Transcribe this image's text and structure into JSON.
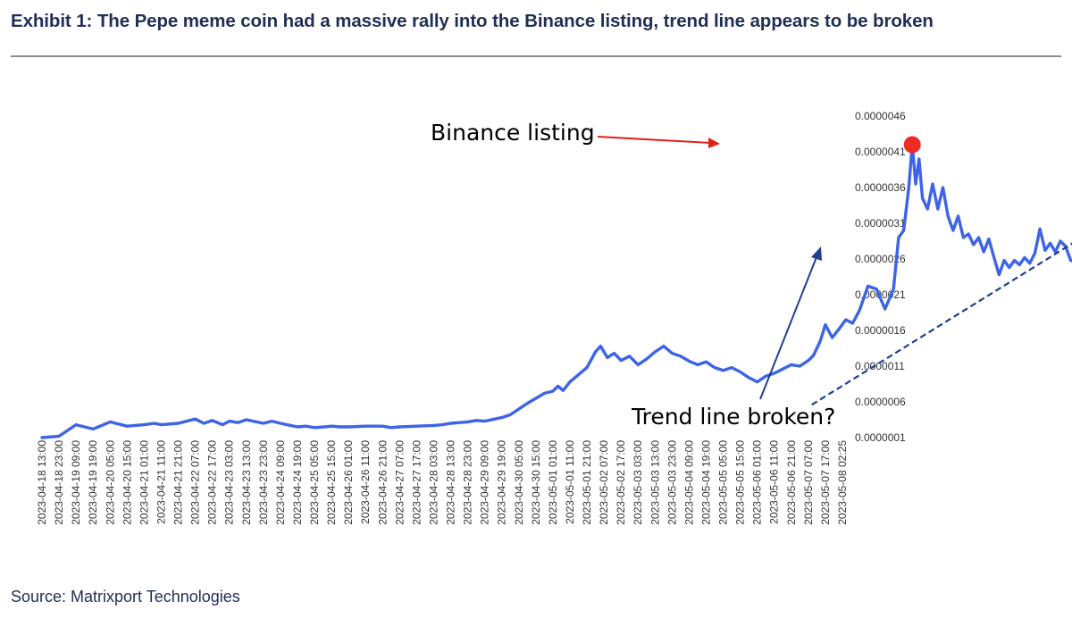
{
  "header": {
    "title": "Exhibit 1: The Pepe meme coin had a massive rally into the Binance listing, trend line appears to be broken"
  },
  "footer": {
    "source": "Source: Matrixport Technologies"
  },
  "colors": {
    "series": "#3d64e6",
    "marker": "#ee2b24",
    "arrow_red": "#e0201c",
    "trend": "#1f3f8f",
    "title": "#1f2f57"
  },
  "chart_data": {
    "type": "line",
    "title": "",
    "xlabel": "",
    "ylabel": "",
    "y_axis_position": "right",
    "grid": false,
    "ylim": [
      1e-07,
      4.6e-06
    ],
    "y_ticks": [
      "0.0000046",
      "0.0000041",
      "0.0000036",
      "0.0000031",
      "0.0000026",
      "0.0000021",
      "0.0000016",
      "0.0000011",
      "0.0000006",
      "0.0000001"
    ],
    "x_tick_labels": [
      "2023-04-18 13:00",
      "2023-04-18 23:00",
      "2023-04-19 09:00",
      "2023-04-19 19:00",
      "2023-04-20 05:00",
      "2023-04-20 15:00",
      "2023-04-21 01:00",
      "2023-04-21 11:00",
      "2023-04-21 21:00",
      "2023-04-22 07:00",
      "2023-04-22 17:00",
      "2023-04-23 03:00",
      "2023-04-23 13:00",
      "2023-04-23 23:00",
      "2023-04-24 09:00",
      "2023-04-24 19:00",
      "2023-04-25 05:00",
      "2023-04-25 15:00",
      "2023-04-26 01:00",
      "2023-04-26 11:00",
      "2023-04-26 21:00",
      "2023-04-27 07:00",
      "2023-04-27 17:00",
      "2023-04-28 03:00",
      "2023-04-28 13:00",
      "2023-04-28 23:00",
      "2023-04-29 09:00",
      "2023-04-29 19:00",
      "2023-04-30 05:00",
      "2023-04-30 15:00",
      "2023-05-01 01:00",
      "2023-05-01 11:00",
      "2023-05-01 21:00",
      "2023-05-02 07:00",
      "2023-05-02 17:00",
      "2023-05-03 03:00",
      "2023-05-03 13:00",
      "2023-05-03 23:00",
      "2023-05-04 09:00",
      "2023-05-04 19:00",
      "2023-05-05 05:00",
      "2023-05-05 15:00",
      "2023-05-06 01:00",
      "2023-05-06 11:00",
      "2023-05-06 21:00",
      "2023-05-07 07:00",
      "2023-05-07 17:00",
      "2023-05-08 02:25"
    ],
    "series": [
      {
        "name": "",
        "points": [
          [
            0,
            1e-07
          ],
          [
            1,
            1.2e-07
          ],
          [
            2,
            2.8e-07
          ],
          [
            3,
            2.2e-07
          ],
          [
            4,
            3.2e-07
          ],
          [
            5,
            2.6e-07
          ],
          [
            6,
            2.8e-07
          ],
          [
            6.6,
            3e-07
          ],
          [
            7,
            2.8e-07
          ],
          [
            8,
            3e-07
          ],
          [
            9,
            3.6e-07
          ],
          [
            9.5,
            3e-07
          ],
          [
            10,
            3.4e-07
          ],
          [
            10.6,
            2.8e-07
          ],
          [
            11,
            3.3e-07
          ],
          [
            11.5,
            3.1e-07
          ],
          [
            12,
            3.5e-07
          ],
          [
            12.6,
            3.2e-07
          ],
          [
            13,
            3e-07
          ],
          [
            13.5,
            3.3e-07
          ],
          [
            14,
            3e-07
          ],
          [
            14.6,
            2.7e-07
          ],
          [
            15,
            2.5e-07
          ],
          [
            15.5,
            2.6e-07
          ],
          [
            16,
            2.4e-07
          ],
          [
            16.6,
            2.5e-07
          ],
          [
            17,
            2.6e-07
          ],
          [
            17.5,
            2.5e-07
          ],
          [
            18,
            2.5e-07
          ],
          [
            19,
            2.6e-07
          ],
          [
            20,
            2.6e-07
          ],
          [
            20.5,
            2.4e-07
          ],
          [
            21,
            2.5e-07
          ],
          [
            22,
            2.6e-07
          ],
          [
            23,
            2.7e-07
          ],
          [
            23.5,
            2.8e-07
          ],
          [
            24,
            3e-07
          ],
          [
            25,
            3.2e-07
          ],
          [
            25.5,
            3.4e-07
          ],
          [
            26,
            3.3e-07
          ],
          [
            27,
            3.8e-07
          ],
          [
            27.5,
            4.2e-07
          ],
          [
            28,
            5e-07
          ],
          [
            28.5,
            5.8e-07
          ],
          [
            29,
            6.5e-07
          ],
          [
            29.5,
            7.2e-07
          ],
          [
            30,
            7.5e-07
          ],
          [
            30.3,
            8.2e-07
          ],
          [
            30.6,
            7.6e-07
          ],
          [
            31,
            8.8e-07
          ],
          [
            31.5,
            9.8e-07
          ],
          [
            32,
            1.08e-06
          ],
          [
            32.5,
            1.3e-06
          ],
          [
            32.8,
            1.38e-06
          ],
          [
            33.2,
            1.22e-06
          ],
          [
            33.6,
            1.28e-06
          ],
          [
            34,
            1.18e-06
          ],
          [
            34.5,
            1.24e-06
          ],
          [
            35,
            1.12e-06
          ],
          [
            35.5,
            1.2e-06
          ],
          [
            36,
            1.3e-06
          ],
          [
            36.5,
            1.38e-06
          ],
          [
            37,
            1.28e-06
          ],
          [
            37.5,
            1.24e-06
          ],
          [
            38,
            1.17e-06
          ],
          [
            38.5,
            1.12e-06
          ],
          [
            39,
            1.16e-06
          ],
          [
            39.5,
            1.08e-06
          ],
          [
            40,
            1.04e-06
          ],
          [
            40.5,
            1.08e-06
          ],
          [
            41,
            1.02e-06
          ],
          [
            41.5,
            9.4e-07
          ],
          [
            42,
            8.8e-07
          ],
          [
            42.5,
            9.6e-07
          ],
          [
            43,
            1e-06
          ],
          [
            43.5,
            1.06e-06
          ],
          [
            44,
            1.12e-06
          ],
          [
            44.5,
            1.1e-06
          ],
          [
            45,
            1.18e-06
          ],
          [
            45.3,
            1.25e-06
          ],
          [
            45.7,
            1.45e-06
          ],
          [
            46,
            1.68e-06
          ],
          [
            46.4,
            1.5e-06
          ],
          [
            46.8,
            1.62e-06
          ],
          [
            47.2,
            1.75e-06
          ],
          [
            47.6,
            1.7e-06
          ],
          [
            48,
            1.88e-06
          ],
          [
            48.5,
            2.22e-06
          ],
          [
            49,
            2.18e-06
          ],
          [
            49.5,
            1.9e-06
          ],
          [
            50,
            2.18e-06
          ],
          [
            50.3,
            2.9e-06
          ],
          [
            50.6,
            3e-06
          ],
          [
            50.9,
            3.6e-06
          ],
          [
            51.1,
            4.2e-06
          ],
          [
            51.3,
            3.65e-06
          ],
          [
            51.5,
            4e-06
          ],
          [
            51.7,
            3.45e-06
          ],
          [
            52,
            3.3e-06
          ],
          [
            52.3,
            3.65e-06
          ],
          [
            52.6,
            3.3e-06
          ],
          [
            52.9,
            3.6e-06
          ],
          [
            53.2,
            3.2e-06
          ],
          [
            53.5,
            3e-06
          ],
          [
            53.8,
            3.2e-06
          ],
          [
            54.1,
            2.9e-06
          ],
          [
            54.4,
            2.95e-06
          ],
          [
            54.7,
            2.8e-06
          ],
          [
            55,
            2.9e-06
          ],
          [
            55.3,
            2.7e-06
          ],
          [
            55.6,
            2.88e-06
          ],
          [
            55.9,
            2.62e-06
          ],
          [
            56.2,
            2.38e-06
          ],
          [
            56.5,
            2.58e-06
          ],
          [
            56.8,
            2.48e-06
          ],
          [
            57.1,
            2.58e-06
          ],
          [
            57.4,
            2.52e-06
          ],
          [
            57.7,
            2.62e-06
          ],
          [
            58,
            2.54e-06
          ],
          [
            58.3,
            2.68e-06
          ],
          [
            58.6,
            3.02e-06
          ],
          [
            58.9,
            2.72e-06
          ],
          [
            59.2,
            2.82e-06
          ],
          [
            59.5,
            2.7e-06
          ],
          [
            59.8,
            2.85e-06
          ],
          [
            60.1,
            2.78e-06
          ],
          [
            60.4,
            2.58e-06
          ],
          [
            60.7,
            2.56e-06
          ],
          [
            61,
            2.54e-06
          ]
        ]
      }
    ],
    "annotations": {
      "peak_label": "Binance listing",
      "trend_label": "Trend line broken?",
      "peak_point": [
        51.1,
        4.2e-06
      ],
      "trend_line": [
        [
          45.2,
          5.6e-07
        ],
        [
          61.4,
          2.95e-06
        ]
      ]
    }
  }
}
